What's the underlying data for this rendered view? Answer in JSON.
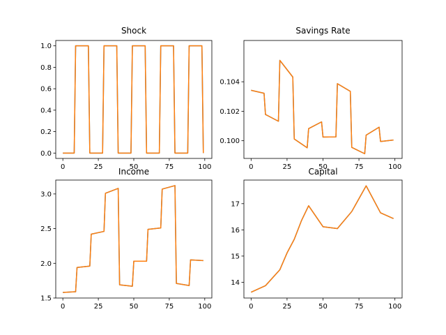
{
  "figure": {
    "background": "#ffffff"
  },
  "chart_data": [
    {
      "type": "line",
      "title": "Shock",
      "xlabel": "",
      "ylabel": "",
      "xlim": [
        -5,
        105
      ],
      "ylim": [
        -0.05,
        1.05
      ],
      "xticks": [
        0,
        25,
        50,
        75,
        100
      ],
      "xtick_labels": [
        "0",
        "25",
        "50",
        "75",
        "100"
      ],
      "yticks": [
        0.0,
        0.2,
        0.4,
        0.6,
        0.8,
        1.0
      ],
      "ytick_labels": [
        "0.0",
        "0.2",
        "0.4",
        "0.6",
        "0.8",
        "1.0"
      ],
      "grid": false,
      "series": [
        {
          "color": "#1f77b4",
          "x": [
            0,
            8,
            9,
            18,
            19,
            28,
            29,
            38,
            39,
            48,
            49,
            58,
            59,
            68,
            69,
            78,
            79,
            88,
            89,
            98,
            99
          ],
          "y": [
            0,
            0,
            1,
            1,
            0,
            0,
            1,
            1,
            0,
            0,
            1,
            1,
            0,
            0,
            1,
            1,
            0,
            0,
            1,
            1,
            0
          ]
        },
        {
          "color": "#ff7f0e",
          "x": [
            0,
            8,
            9,
            18,
            19,
            28,
            29,
            38,
            39,
            48,
            49,
            58,
            59,
            68,
            69,
            78,
            79,
            88,
            89,
            98,
            99
          ],
          "y": [
            0,
            0,
            1,
            1,
            0,
            0,
            1,
            1,
            0,
            0,
            1,
            1,
            0,
            0,
            1,
            1,
            0,
            0,
            1,
            1,
            0
          ]
        }
      ]
    },
    {
      "type": "line",
      "title": "Savings Rate",
      "xlabel": "",
      "ylabel": "",
      "xlim": [
        -5,
        105
      ],
      "ylim": [
        0.0988,
        0.1068
      ],
      "xticks": [
        0,
        25,
        50,
        75,
        100
      ],
      "xtick_labels": [
        "0",
        "25",
        "50",
        "75",
        "100"
      ],
      "yticks": [
        0.1,
        0.102,
        0.104
      ],
      "ytick_labels": [
        "0.100",
        "0.102",
        "0.104"
      ],
      "grid": false,
      "series": [
        {
          "color": "#1f77b4",
          "x": [
            0,
            9,
            10,
            19,
            20,
            29,
            30,
            39,
            40,
            49,
            50,
            59,
            60,
            69,
            70,
            79,
            80,
            89,
            90,
            99
          ],
          "y": [
            0.10342,
            0.10322,
            0.10178,
            0.10132,
            0.10545,
            0.10432,
            0.10012,
            0.09952,
            0.10082,
            0.10128,
            0.10025,
            0.10026,
            0.10387,
            0.10335,
            0.09955,
            0.09912,
            0.10038,
            0.10092,
            0.09995,
            0.10005
          ]
        },
        {
          "color": "#ff7f0e",
          "x": [
            0,
            9,
            10,
            19,
            20,
            29,
            30,
            39,
            40,
            49,
            50,
            59,
            60,
            69,
            70,
            79,
            80,
            89,
            90,
            99
          ],
          "y": [
            0.10342,
            0.10322,
            0.10178,
            0.10132,
            0.10545,
            0.10432,
            0.10012,
            0.09952,
            0.10082,
            0.10128,
            0.10025,
            0.10026,
            0.10387,
            0.10335,
            0.09955,
            0.09912,
            0.10038,
            0.10092,
            0.09995,
            0.10005
          ]
        }
      ]
    },
    {
      "type": "line",
      "title": "Income",
      "xlabel": "",
      "ylabel": "",
      "xlim": [
        -5,
        105
      ],
      "ylim": [
        1.5,
        3.2
      ],
      "xticks": [
        0,
        25,
        50,
        75,
        100
      ],
      "xtick_labels": [
        "0",
        "25",
        "50",
        "75",
        "100"
      ],
      "yticks": [
        1.5,
        2.0,
        2.5,
        3.0
      ],
      "ytick_labels": [
        "1.5",
        "2.0",
        "2.5",
        "3.0"
      ],
      "grid": false,
      "series": [
        {
          "color": "#1f77b4",
          "x": [
            0,
            9,
            10,
            19,
            20,
            29,
            30,
            39,
            40,
            49,
            50,
            59,
            60,
            69,
            70,
            79,
            80,
            89,
            90,
            99
          ],
          "y": [
            1.58,
            1.59,
            1.94,
            1.96,
            2.42,
            2.46,
            3.01,
            3.08,
            1.69,
            1.67,
            2.03,
            2.03,
            2.49,
            2.51,
            3.07,
            3.12,
            1.71,
            1.68,
            2.05,
            2.04
          ]
        },
        {
          "color": "#ff7f0e",
          "x": [
            0,
            9,
            10,
            19,
            20,
            29,
            30,
            39,
            40,
            49,
            50,
            59,
            60,
            69,
            70,
            79,
            80,
            89,
            90,
            99
          ],
          "y": [
            1.58,
            1.59,
            1.94,
            1.96,
            2.42,
            2.46,
            3.01,
            3.08,
            1.69,
            1.67,
            2.03,
            2.03,
            2.49,
            2.51,
            3.07,
            3.12,
            1.71,
            1.68,
            2.05,
            2.04
          ]
        }
      ]
    },
    {
      "type": "line",
      "title": "Capital",
      "xlabel": "",
      "ylabel": "",
      "xlim": [
        -5,
        105
      ],
      "ylim": [
        13.4,
        17.9
      ],
      "xticks": [
        0,
        25,
        50,
        75,
        100
      ],
      "xtick_labels": [
        "0",
        "25",
        "50",
        "75",
        "100"
      ],
      "yticks": [
        14,
        15,
        16,
        17
      ],
      "ytick_labels": [
        "14",
        "15",
        "16",
        "17"
      ],
      "grid": false,
      "series": [
        {
          "color": "#1f77b4",
          "x": [
            0,
            10,
            20,
            25,
            30,
            35,
            40,
            50,
            60,
            70,
            80,
            90,
            99
          ],
          "y": [
            13.62,
            13.87,
            14.48,
            15.12,
            15.64,
            16.35,
            16.92,
            16.12,
            16.05,
            16.7,
            17.68,
            16.65,
            16.43
          ]
        },
        {
          "color": "#ff7f0e",
          "x": [
            0,
            10,
            20,
            25,
            30,
            35,
            40,
            50,
            60,
            70,
            80,
            90,
            99
          ],
          "y": [
            13.62,
            13.87,
            14.48,
            15.12,
            15.64,
            16.35,
            16.92,
            16.12,
            16.05,
            16.7,
            17.68,
            16.65,
            16.43
          ]
        }
      ]
    }
  ]
}
